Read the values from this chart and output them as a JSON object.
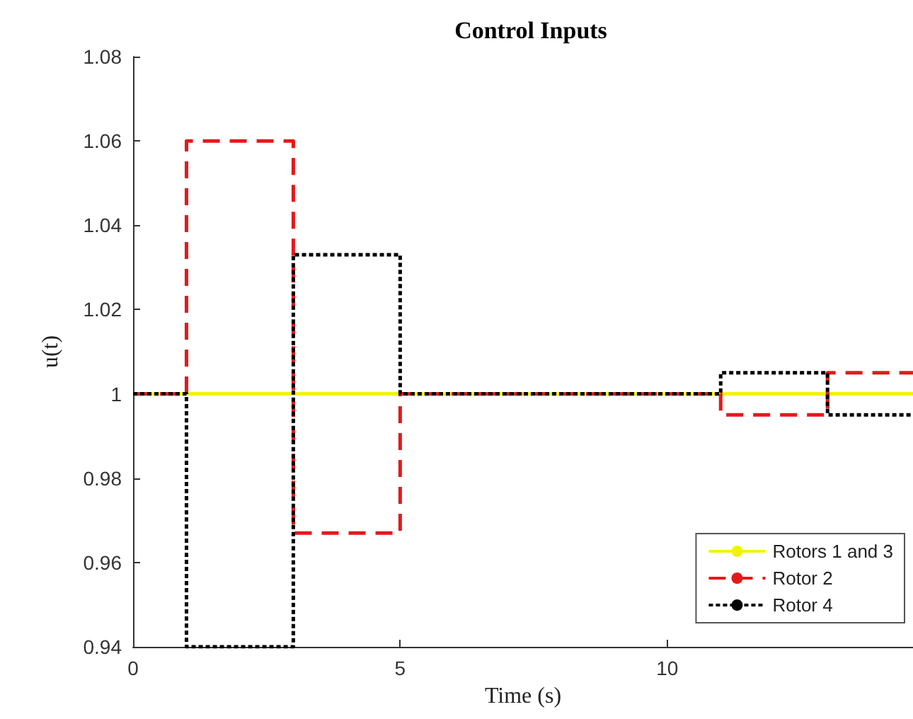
{
  "chart_data": {
    "type": "step",
    "title": "Control Inputs",
    "xlabel": "Time (s)",
    "ylabel": "u(t)",
    "xlim": [
      0,
      14.6
    ],
    "xticks": [
      0,
      5,
      10
    ],
    "ylim": [
      0.94,
      1.08
    ],
    "yticks": [
      0.94,
      0.96,
      0.98,
      1,
      1.02,
      1.04,
      1.06,
      1.08
    ],
    "grid": false,
    "legend": "bottom right",
    "marker": "none",
    "series": [
      {
        "name": "Rotors 1 and 3",
        "color": "#f2f20f",
        "line_style": "solid",
        "x": [
          0,
          14.6
        ],
        "values": [
          1,
          1
        ]
      },
      {
        "name": "Rotor 2",
        "color": "#e31a1a",
        "line_style": "dashed",
        "x": [
          0,
          1,
          3,
          5,
          11,
          13,
          14.6
        ],
        "values": [
          1,
          1.06,
          0.967,
          1,
          0.995,
          1.005,
          1.005
        ]
      },
      {
        "name": "Rotor 4",
        "color": "#000000",
        "line_style": "dotted",
        "x": [
          0,
          1,
          3,
          5,
          11,
          13,
          14.6
        ],
        "values": [
          1,
          0.94,
          1.033,
          1,
          1.005,
          0.995,
          0.995
        ]
      }
    ]
  }
}
